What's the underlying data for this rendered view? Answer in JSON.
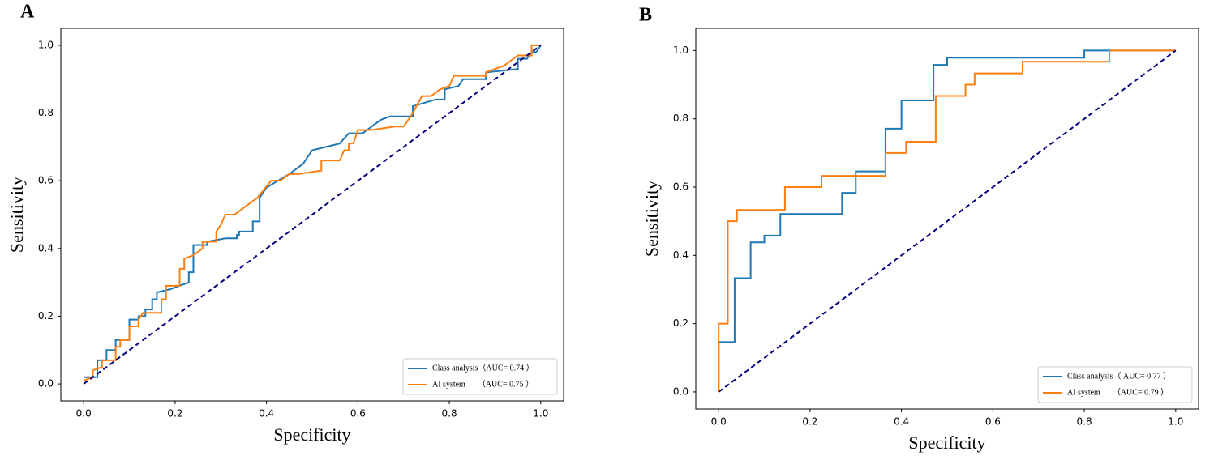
{
  "chart_data": [
    {
      "type": "line",
      "panel_label": "A",
      "xlabel": "Specificity",
      "ylabel": "Sensitivity",
      "xlim": [
        -0.05,
        1.05
      ],
      "ylim": [
        -0.05,
        1.05
      ],
      "xticks": [
        {
          "value": 0,
          "label": "0.0"
        },
        0.2,
        0.4,
        0.6,
        0.8,
        {
          "value": 1,
          "label": "1.0"
        }
      ],
      "yticks": [
        {
          "value": 0,
          "label": "0.0"
        },
        0.2,
        0.4,
        0.6,
        0.8,
        {
          "value": 1,
          "label": "1.0"
        }
      ],
      "legend": "lower right",
      "reference_line": {
        "x": [
          0,
          1
        ],
        "values": [
          0,
          1
        ],
        "color": "#000080"
      },
      "series": [
        {
          "name": "Class analysis（AUC= 0.74 ）",
          "color": "#1f77b4",
          "x": [
            0,
            0.03,
            0.03,
            0.05,
            0.05,
            0.07,
            0.07,
            0.1,
            0.1,
            0.12,
            0.12,
            0.135,
            0.135,
            0.15,
            0.15,
            0.16,
            0.16,
            0.19,
            0.23,
            0.23,
            0.24,
            0.24,
            0.27,
            0.27,
            0.31,
            0.335,
            0.335,
            0.34,
            0.34,
            0.37,
            0.37,
            0.385,
            0.385,
            0.4,
            0.45,
            0.48,
            0.5,
            0.53,
            0.56,
            0.58,
            0.61,
            0.63,
            0.65,
            0.67,
            0.72,
            0.72,
            0.77,
            0.79,
            0.79,
            0.82,
            0.83,
            0.88,
            0.88,
            0.95,
            0.95,
            0.97,
            0.98,
            0.99,
            1
          ],
          "values": [
            0.02,
            0.02,
            0.07,
            0.07,
            0.1,
            0.1,
            0.13,
            0.13,
            0.19,
            0.19,
            0.2,
            0.2,
            0.22,
            0.22,
            0.25,
            0.25,
            0.27,
            0.28,
            0.3,
            0.33,
            0.33,
            0.41,
            0.41,
            0.42,
            0.43,
            0.43,
            0.44,
            0.44,
            0.45,
            0.45,
            0.48,
            0.48,
            0.55,
            0.58,
            0.62,
            0.65,
            0.69,
            0.7,
            0.71,
            0.74,
            0.74,
            0.76,
            0.78,
            0.79,
            0.79,
            0.82,
            0.84,
            0.84,
            0.87,
            0.88,
            0.9,
            0.9,
            0.92,
            0.93,
            0.96,
            0.96,
            0.98,
            0.98,
            1
          ]
        },
        {
          "name": "AI system　　（AUC= 0.75 ）",
          "color": "#ff7f0e",
          "x": [
            0,
            0.02,
            0.02,
            0.04,
            0.04,
            0.07,
            0.07,
            0.08,
            0.08,
            0.1,
            0.1,
            0.12,
            0.12,
            0.13,
            0.17,
            0.17,
            0.18,
            0.18,
            0.21,
            0.21,
            0.22,
            0.22,
            0.24,
            0.26,
            0.26,
            0.29,
            0.29,
            0.3,
            0.31,
            0.33,
            0.34,
            0.36,
            0.38,
            0.41,
            0.43,
            0.45,
            0.47,
            0.52,
            0.52,
            0.56,
            0.57,
            0.58,
            0.58,
            0.59,
            0.6,
            0.63,
            0.68,
            0.7,
            0.72,
            0.74,
            0.76,
            0.78,
            0.8,
            0.81,
            0.88,
            0.88,
            0.92,
            0.95,
            0.98,
            0.98,
            1
          ],
          "values": [
            0.01,
            0.02,
            0.04,
            0.05,
            0.07,
            0.07,
            0.11,
            0.11,
            0.13,
            0.13,
            0.17,
            0.17,
            0.19,
            0.21,
            0.21,
            0.25,
            0.25,
            0.29,
            0.29,
            0.34,
            0.34,
            0.37,
            0.38,
            0.4,
            0.42,
            0.42,
            0.45,
            0.47,
            0.5,
            0.5,
            0.51,
            0.53,
            0.55,
            0.6,
            0.6,
            0.62,
            0.62,
            0.63,
            0.66,
            0.66,
            0.69,
            0.69,
            0.71,
            0.71,
            0.75,
            0.75,
            0.76,
            0.76,
            0.8,
            0.85,
            0.85,
            0.87,
            0.88,
            0.91,
            0.91,
            0.92,
            0.94,
            0.97,
            0.97,
            1,
            1
          ]
        }
      ]
    },
    {
      "type": "line",
      "panel_label": "B",
      "xlabel": "Specificity",
      "ylabel": "Sensitivity",
      "xlim": [
        -0.05,
        1.05
      ],
      "ylim": [
        -0.05,
        1.065
      ],
      "xticks": [
        {
          "value": 0,
          "label": "0.0"
        },
        0.2,
        0.4,
        0.6,
        0.8,
        {
          "value": 1,
          "label": "1.0"
        }
      ],
      "yticks": [
        {
          "value": 0,
          "label": "0.0"
        },
        0.2,
        0.4,
        0.6,
        0.8,
        {
          "value": 1,
          "label": "1.0"
        }
      ],
      "legend": "lower right",
      "reference_line": {
        "x": [
          0,
          1
        ],
        "values": [
          0,
          1
        ],
        "color": "#000080"
      },
      "series": [
        {
          "name": "Class analysis（ AUC= 0.77 ）",
          "color": "#1f77b4",
          "x": [
            0,
            0,
            0.035,
            0.035,
            0.07,
            0.07,
            0.1,
            0.1,
            0.135,
            0.135,
            0.27,
            0.27,
            0.3,
            0.3,
            0.365,
            0.365,
            0.4,
            0.4,
            0.47,
            0.47,
            0.5,
            0.5,
            0.8,
            0.8,
            1
          ],
          "values": [
            0,
            0.146,
            0.146,
            0.333,
            0.333,
            0.438,
            0.438,
            0.458,
            0.458,
            0.521,
            0.521,
            0.583,
            0.583,
            0.646,
            0.646,
            0.771,
            0.771,
            0.854,
            0.854,
            0.958,
            0.958,
            0.979,
            0.979,
            1,
            1
          ]
        },
        {
          "name": "AI system　　（AUC= 0.79 ）",
          "color": "#ff7f0e",
          "x": [
            0,
            0,
            0.02,
            0.02,
            0.04,
            0.04,
            0.145,
            0.145,
            0.225,
            0.225,
            0.365,
            0.365,
            0.41,
            0.41,
            0.475,
            0.475,
            0.54,
            0.54,
            0.56,
            0.56,
            0.665,
            0.665,
            0.855,
            0.855,
            1
          ],
          "values": [
            0,
            0.2,
            0.2,
            0.5,
            0.5,
            0.533,
            0.533,
            0.6,
            0.6,
            0.633,
            0.633,
            0.7,
            0.7,
            0.733,
            0.733,
            0.867,
            0.867,
            0.9,
            0.9,
            0.933,
            0.933,
            0.967,
            0.967,
            1,
            1
          ]
        }
      ]
    }
  ]
}
